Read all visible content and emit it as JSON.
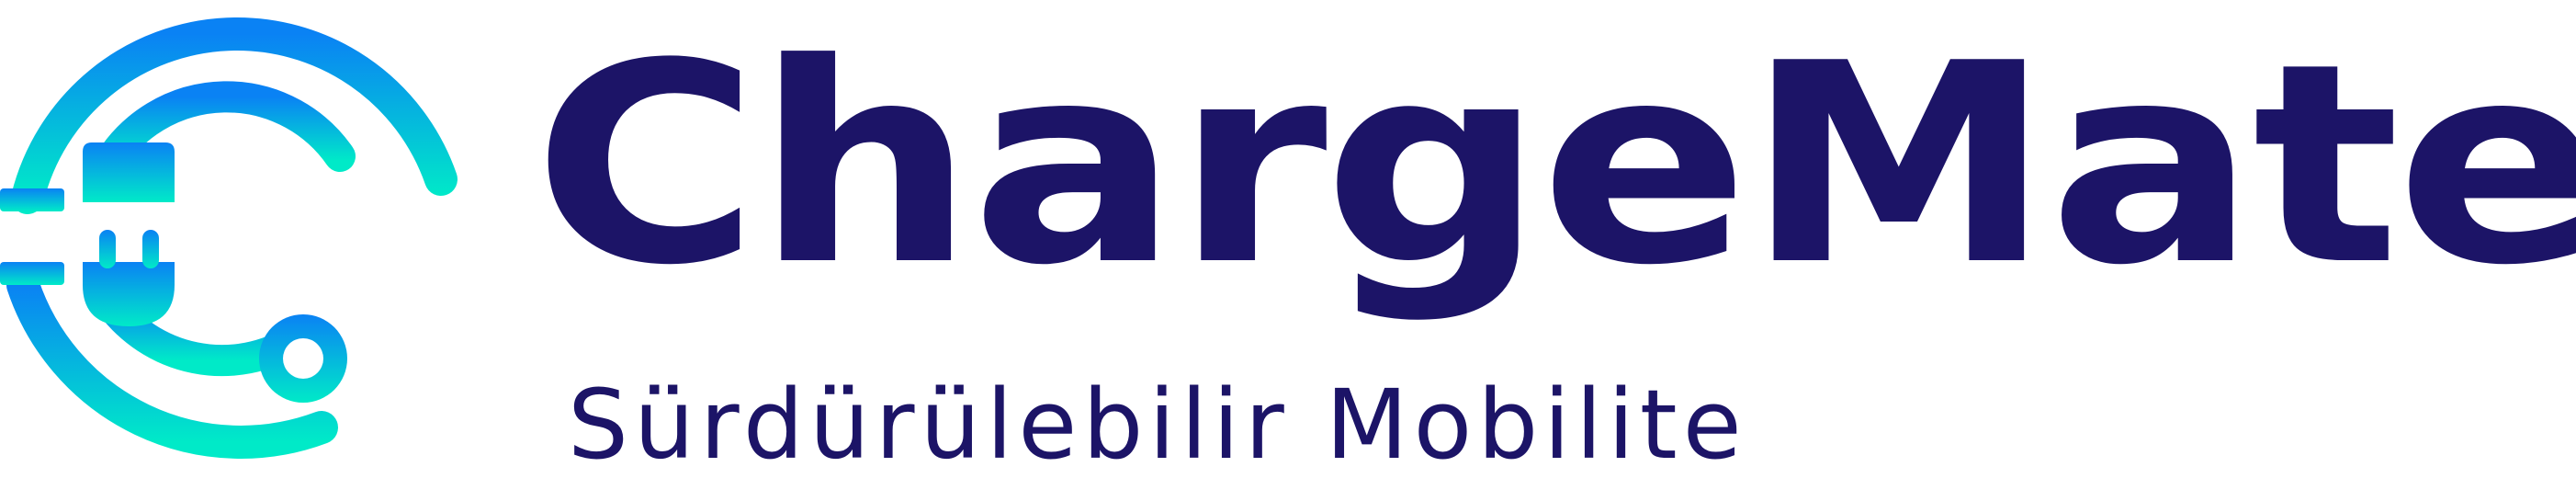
{
  "brand": {
    "name": "ChargeMate",
    "tagline": "Sürdürülebilir Mobilite"
  },
  "colors": {
    "text": "#1c1467",
    "gradient_top": "#0a82f4",
    "gradient_bottom": "#00eac8"
  },
  "icon": {
    "name": "charging-plug-c-logo-icon"
  }
}
